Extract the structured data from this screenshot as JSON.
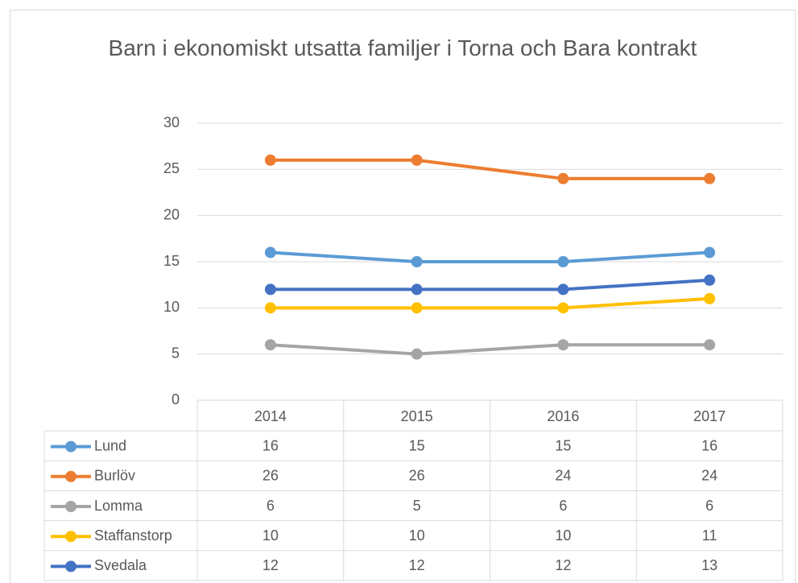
{
  "chart_data": {
    "type": "line",
    "title": "Barn i ekonomiskt utsatta familjer i Torna och Bara kontrakt",
    "categories": [
      "2014",
      "2015",
      "2016",
      "2017"
    ],
    "series": [
      {
        "name": "Lund",
        "color": "#5b9bd5",
        "values": [
          16,
          15,
          15,
          16
        ]
      },
      {
        "name": "Burlöv",
        "color": "#ed7d31",
        "values": [
          26,
          26,
          24,
          24
        ]
      },
      {
        "name": "Lomma",
        "color": "#a5a5a5",
        "values": [
          6,
          5,
          6,
          6
        ]
      },
      {
        "name": "Staffanstorp",
        "color": "#ffc000",
        "values": [
          10,
          10,
          10,
          11
        ]
      },
      {
        "name": "Svedala",
        "color": "#4472c4",
        "values": [
          12,
          12,
          12,
          13
        ]
      }
    ],
    "ylim": [
      0,
      30
    ],
    "yticks": [
      0,
      5,
      10,
      15,
      20,
      25,
      30
    ],
    "grid": true
  }
}
